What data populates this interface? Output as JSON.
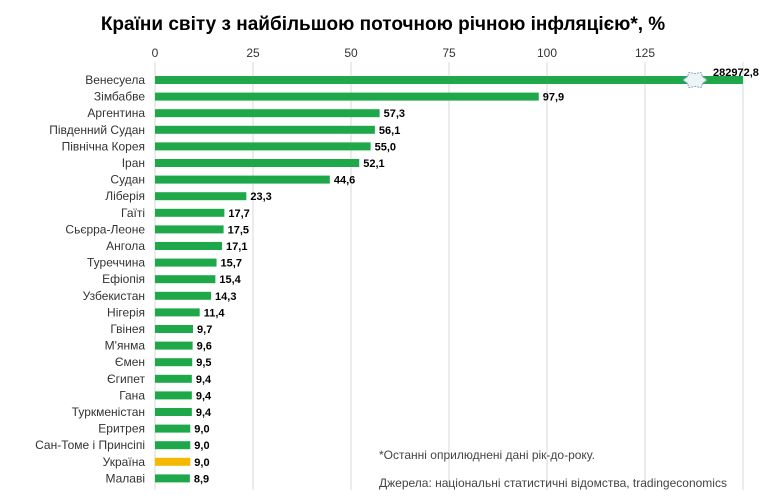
{
  "chart_data": {
    "type": "bar",
    "orientation": "horizontal",
    "title": "Країни світу з найбільшою поточною річною інфляцією*, %",
    "xlim": [
      0,
      150
    ],
    "xticks": [
      0,
      25,
      50,
      75,
      100,
      125
    ],
    "grid": true,
    "axis_break": {
      "series_value": 282972.8,
      "note": "bar truncated with break symbol"
    },
    "colors": {
      "default": "#1fa84a",
      "highlight": "#f5b800"
    },
    "highlight_category": "Україна",
    "categories": [
      "Венесуела",
      "Зімбабве",
      "Аргентина",
      "Південний Судан",
      "Північна Корея",
      "Іран",
      "Судан",
      "Ліберія",
      "Гаїті",
      "Сьєрра-Леоне",
      "Ангола",
      "Туреччина",
      "Ефіопія",
      "Узбекистан",
      "Нігерія",
      "Гвінея",
      "М'янма",
      "Ємен",
      "Єгипет",
      "Гана",
      "Туркменістан",
      "Еритрея",
      "Сан-Томе і Принсіпі",
      "Україна",
      "Малаві"
    ],
    "values": [
      282972.8,
      97.9,
      57.3,
      56.1,
      55.0,
      52.1,
      44.6,
      23.3,
      17.7,
      17.5,
      17.1,
      15.7,
      15.4,
      14.3,
      11.4,
      9.7,
      9.6,
      9.5,
      9.4,
      9.4,
      9.4,
      9.0,
      9.0,
      9.0,
      8.9
    ],
    "value_labels": [
      "282972,8",
      "97,9",
      "57,3",
      "56,1",
      "55,0",
      "52,1",
      "44,6",
      "23,3",
      "17,7",
      "17,5",
      "17,1",
      "15,7",
      "15,4",
      "14,3",
      "11,4",
      "9,7",
      "9,6",
      "9,5",
      "9,4",
      "9,4",
      "9,4",
      "9,0",
      "9,0",
      "9,0",
      "8,9"
    ],
    "tick_labels": [
      "0",
      "25",
      "50",
      "75",
      "100",
      "125"
    ]
  },
  "notes": {
    "footnote": "*Останні  оприлюднені  дані рік-до-року.",
    "sources": "Джерела: національні статистичні відомства, tradingeconomics"
  }
}
